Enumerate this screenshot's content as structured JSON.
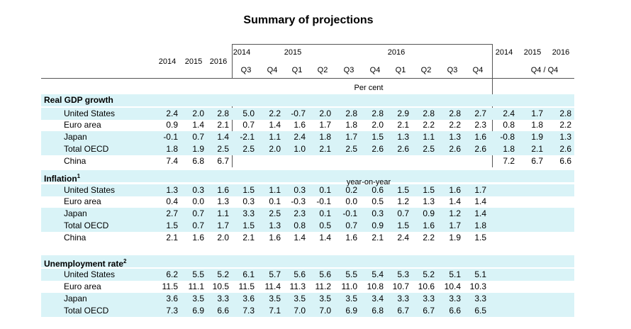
{
  "title": "Summary of projections",
  "header": {
    "annual_years": [
      "2014",
      "2015",
      "2016"
    ],
    "quarter_years": [
      {
        "year": "2014",
        "col": 0
      },
      {
        "year": "2015",
        "col": 2
      },
      {
        "year": "2016",
        "col": 6
      }
    ],
    "quarters": [
      "Q3",
      "Q4",
      "Q1",
      "Q2",
      "Q3",
      "Q4",
      "Q1",
      "Q2",
      "Q3",
      "Q4"
    ],
    "q4_years": [
      "2014",
      "2015",
      "2016"
    ],
    "q4_label": "Q4 / Q4"
  },
  "unit_label": "Per cent",
  "sections": [
    {
      "title": "Real GDP growth",
      "sup": "",
      "note": "",
      "rows": [
        {
          "label": "United States",
          "annual": [
            "2.4",
            "2.0",
            "2.8"
          ],
          "quarterly": [
            "5.0",
            "2.2",
            "-0.7",
            "2.0",
            "2.8",
            "2.8",
            "2.9",
            "2.8",
            "2.8",
            "2.7"
          ],
          "q4": [
            "2.4",
            "1.7",
            "2.8"
          ]
        },
        {
          "label": "Euro area",
          "annual": [
            "0.9",
            "1.4",
            "2.1"
          ],
          "quarterly": [
            "0.7",
            "1.4",
            "1.6",
            "1.7",
            "1.8",
            "2.0",
            "2.1",
            "2.2",
            "2.2",
            "2.3"
          ],
          "q4": [
            "0.8",
            "1.8",
            "2.2"
          ]
        },
        {
          "label": "Japan",
          "annual": [
            "-0.1",
            "0.7",
            "1.4"
          ],
          "quarterly": [
            "-2.1",
            "1.1",
            "2.4",
            "1.8",
            "1.7",
            "1.5",
            "1.3",
            "1.1",
            "1.3",
            "1.6"
          ],
          "q4": [
            "-0.8",
            "1.9",
            "1.3"
          ]
        },
        {
          "label": "Total OECD",
          "annual": [
            "1.8",
            "1.9",
            "2.5"
          ],
          "quarterly": [
            "2.5",
            "2.0",
            "1.0",
            "2.1",
            "2.5",
            "2.6",
            "2.6",
            "2.5",
            "2.6",
            "2.6"
          ],
          "q4": [
            "1.8",
            "2.1",
            "2.6"
          ]
        },
        {
          "label": "China",
          "annual": [
            "7.4",
            "6.8",
            "6.7"
          ],
          "quarterly": [],
          "q4": [
            "7.2",
            "6.7",
            "6.6"
          ]
        }
      ]
    },
    {
      "title": "Inflation",
      "sup": "1",
      "note": "year-on-year",
      "rows": [
        {
          "label": "United States",
          "annual": [
            "1.3",
            "0.3",
            "1.6"
          ],
          "quarterly": [
            "1.5",
            "1.1",
            "0.3",
            "0.1",
            "0.2",
            "0.6",
            "1.5",
            "1.5",
            "1.6",
            "1.7"
          ],
          "q4": []
        },
        {
          "label": "Euro area",
          "annual": [
            "0.4",
            "0.0",
            "1.3"
          ],
          "quarterly": [
            "0.3",
            "0.1",
            "-0.3",
            "-0.1",
            "0.0",
            "0.5",
            "1.2",
            "1.3",
            "1.4",
            "1.4"
          ],
          "q4": []
        },
        {
          "label": "Japan",
          "annual": [
            "2.7",
            "0.7",
            "1.1"
          ],
          "quarterly": [
            "3.3",
            "2.5",
            "2.3",
            "0.1",
            "-0.1",
            "0.3",
            "0.7",
            "0.9",
            "1.2",
            "1.4"
          ],
          "q4": []
        },
        {
          "label": "Total OECD",
          "annual": [
            "1.5",
            "0.7",
            "1.7"
          ],
          "quarterly": [
            "1.5",
            "1.3",
            "0.8",
            "0.5",
            "0.7",
            "0.9",
            "1.5",
            "1.6",
            "1.7",
            "1.8"
          ],
          "q4": []
        },
        {
          "label": "China",
          "annual": [
            "2.1",
            "1.6",
            "2.0"
          ],
          "quarterly": [
            "2.1",
            "1.6",
            "1.4",
            "1.4",
            "1.6",
            "2.1",
            "2.4",
            "2.2",
            "1.9",
            "1.5"
          ],
          "q4": []
        }
      ]
    },
    {
      "title": "Unemployment rate",
      "sup": "2",
      "note": "",
      "rows": [
        {
          "label": "United States",
          "annual": [
            "6.2",
            "5.5",
            "5.2"
          ],
          "quarterly": [
            "6.1",
            "5.7",
            "5.6",
            "5.6",
            "5.5",
            "5.4",
            "5.3",
            "5.2",
            "5.1",
            "5.1"
          ],
          "q4": []
        },
        {
          "label": "Euro area",
          "annual": [
            "11.5",
            "11.1",
            "10.5"
          ],
          "quarterly": [
            "11.5",
            "11.4",
            "11.3",
            "11.2",
            "11.0",
            "10.8",
            "10.7",
            "10.6",
            "10.4",
            "10.3"
          ],
          "q4": []
        },
        {
          "label": "Japan",
          "annual": [
            "3.6",
            "3.5",
            "3.3"
          ],
          "quarterly": [
            "3.6",
            "3.5",
            "3.5",
            "3.5",
            "3.5",
            "3.4",
            "3.3",
            "3.3",
            "3.3",
            "3.3"
          ],
          "q4": []
        },
        {
          "label": "Total OECD",
          "annual": [
            "7.3",
            "6.9",
            "6.6"
          ],
          "quarterly": [
            "7.3",
            "7.1",
            "7.0",
            "7.0",
            "6.9",
            "6.8",
            "6.7",
            "6.7",
            "6.6",
            "6.5"
          ],
          "q4": []
        }
      ]
    }
  ]
}
